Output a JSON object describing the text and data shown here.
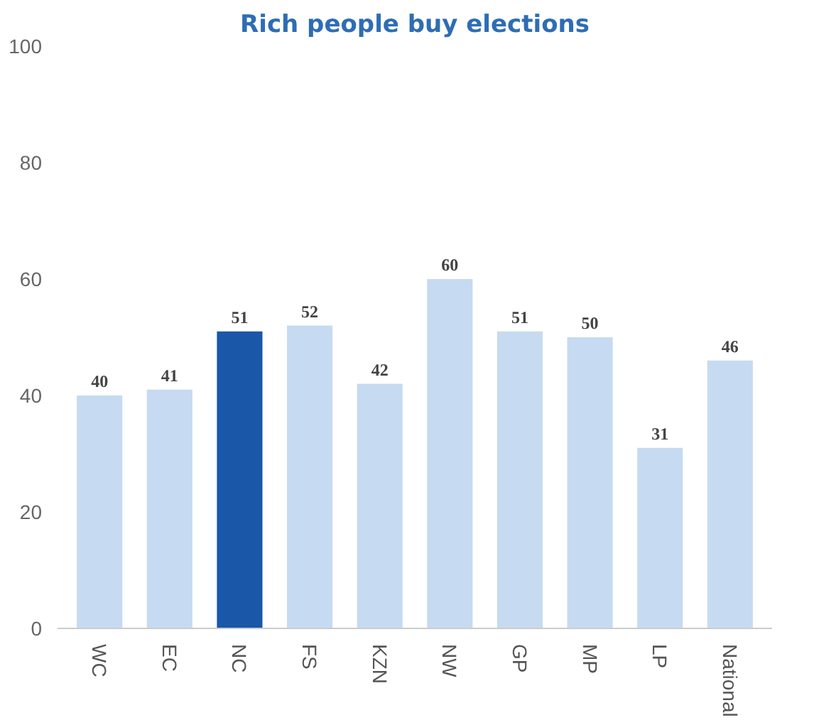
{
  "chart_data": {
    "type": "bar",
    "title": "Rich people buy elections",
    "categories": [
      "WC",
      "EC",
      "NC",
      "FS",
      "KZN",
      "NW",
      "GP",
      "MP",
      "LP",
      "National"
    ],
    "values": [
      40,
      41,
      51,
      52,
      42,
      60,
      51,
      50,
      31,
      46
    ],
    "colors": [
      "#c6daf1",
      "#c6daf1",
      "#1a57a8",
      "#c6daf1",
      "#c6daf1",
      "#c6daf1",
      "#c6daf1",
      "#c6daf1",
      "#c6daf1",
      "#c6daf1"
    ],
    "ylim": [
      0,
      100
    ],
    "yticks": [
      0,
      20,
      40,
      60,
      80,
      100
    ],
    "grid": false,
    "data_labels": true
  }
}
